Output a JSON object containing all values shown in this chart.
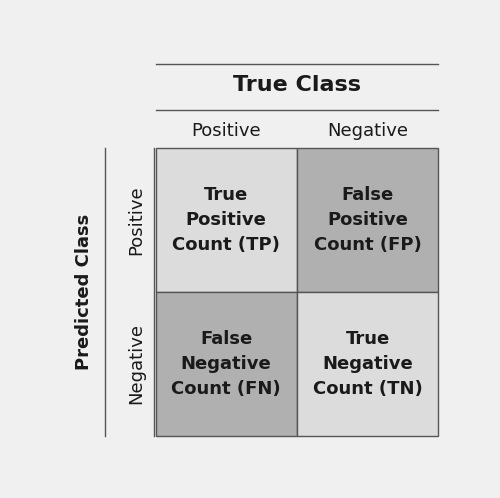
{
  "title": "True Class",
  "ylabel": "Predicted Class",
  "col_labels": [
    "Positive",
    "Negative"
  ],
  "row_labels": [
    "Positive",
    "Negative"
  ],
  "cell_texts": [
    [
      "True\nPositive\nCount (TP)",
      "False\nPositive\nCount (FP)"
    ],
    [
      "False\nNegative\nCount (FN)",
      "True\nNegative\nCount (TN)"
    ]
  ],
  "cell_colors": [
    [
      "#dcdcdc",
      "#b0b0b0"
    ],
    [
      "#b0b0b0",
      "#dcdcdc"
    ]
  ],
  "background_color": "#f0f0f0",
  "border_color": "#555555",
  "text_color": "#1a1a1a",
  "cell_fontsize": 13,
  "label_fontsize": 13,
  "title_fontsize": 16,
  "ylabel_fontsize": 13
}
